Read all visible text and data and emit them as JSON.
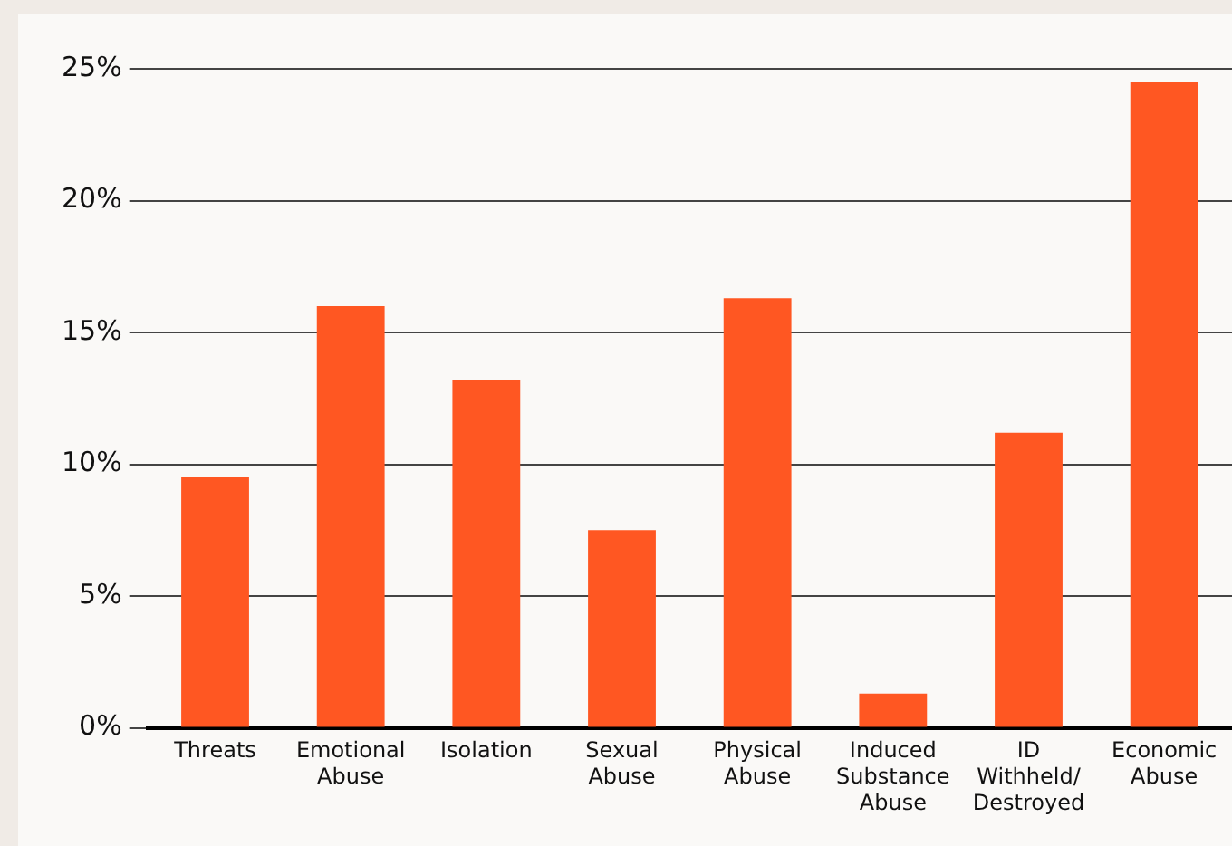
{
  "chart_data": {
    "type": "bar",
    "categories": [
      "Threats",
      "Emotional Abuse",
      "Isolation",
      "Sexual Abuse",
      "Physical Abuse",
      "Induced Substance Abuse",
      "ID Withheld/ Destroyed",
      "Economic Abuse"
    ],
    "values": [
      9.5,
      16.0,
      13.2,
      7.5,
      16.3,
      1.3,
      11.2,
      24.5
    ],
    "color": "#ff5722",
    "ylim": [
      0,
      25
    ],
    "yticks": [
      {
        "value": 0,
        "label": "0%"
      },
      {
        "value": 5,
        "label": "5%"
      },
      {
        "value": 10,
        "label": "10%"
      },
      {
        "value": 15,
        "label": "15%"
      },
      {
        "value": 20,
        "label": "20%"
      },
      {
        "value": 25,
        "label": "25%"
      }
    ],
    "grid": "y"
  }
}
